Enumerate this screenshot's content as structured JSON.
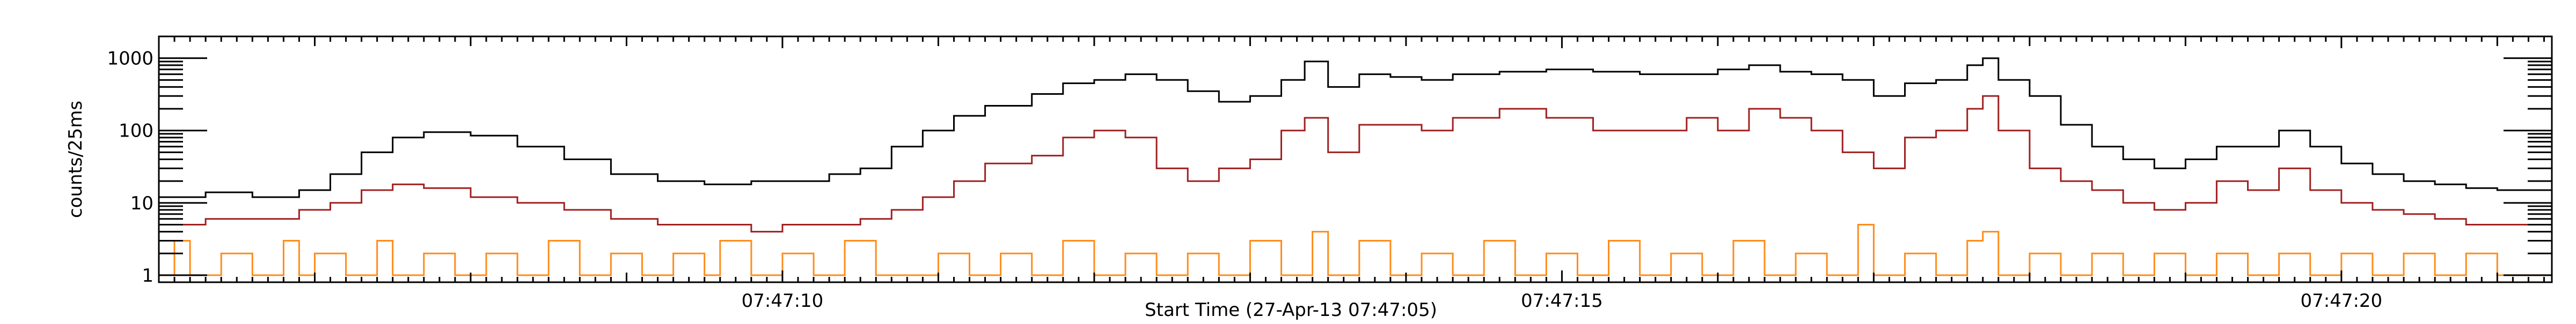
{
  "chart_data": {
    "type": "line",
    "title": "",
    "xlabel": "Start Time (27-Apr-13 07:47:05)",
    "ylabel": "counts/25ms",
    "y_scale": "log",
    "ylim": [
      0.8,
      2000
    ],
    "xlim": [
      1.0,
      16.35
    ],
    "x_unit": "seconds after 07:47:05",
    "x_ticks": [
      {
        "value": 5.0,
        "label": "07:47:10"
      },
      {
        "value": 10.0,
        "label": "07:47:15"
      },
      {
        "value": 15.0,
        "label": "07:47:20"
      }
    ],
    "y_ticks": [
      {
        "value": 1,
        "label": "1"
      },
      {
        "value": 10,
        "label": "10"
      },
      {
        "value": 100,
        "label": "100"
      },
      {
        "value": 1000,
        "label": "1000"
      }
    ],
    "grid": false,
    "legend": "none",
    "series": [
      {
        "color": "#000000",
        "style": "histogram-step",
        "points": [
          [
            1.0,
            12
          ],
          [
            1.3,
            14
          ],
          [
            1.6,
            12
          ],
          [
            1.9,
            15
          ],
          [
            2.1,
            25
          ],
          [
            2.3,
            50
          ],
          [
            2.5,
            80
          ],
          [
            2.7,
            95
          ],
          [
            3.0,
            85
          ],
          [
            3.3,
            60
          ],
          [
            3.6,
            40
          ],
          [
            3.9,
            25
          ],
          [
            4.2,
            20
          ],
          [
            4.5,
            18
          ],
          [
            4.8,
            20
          ],
          [
            5.0,
            20
          ],
          [
            5.3,
            25
          ],
          [
            5.5,
            30
          ],
          [
            5.7,
            60
          ],
          [
            5.9,
            100
          ],
          [
            6.1,
            160
          ],
          [
            6.3,
            220
          ],
          [
            6.6,
            320
          ],
          [
            6.8,
            450
          ],
          [
            7.0,
            500
          ],
          [
            7.2,
            600
          ],
          [
            7.4,
            500
          ],
          [
            7.6,
            350
          ],
          [
            7.8,
            250
          ],
          [
            8.0,
            300
          ],
          [
            8.2,
            500
          ],
          [
            8.35,
            900
          ],
          [
            8.5,
            400
          ],
          [
            8.7,
            600
          ],
          [
            8.9,
            550
          ],
          [
            9.1,
            500
          ],
          [
            9.3,
            600
          ],
          [
            9.6,
            650
          ],
          [
            9.9,
            700
          ],
          [
            10.2,
            650
          ],
          [
            10.5,
            600
          ],
          [
            10.8,
            600
          ],
          [
            11.0,
            700
          ],
          [
            11.2,
            800
          ],
          [
            11.4,
            650
          ],
          [
            11.6,
            600
          ],
          [
            11.8,
            500
          ],
          [
            12.0,
            300
          ],
          [
            12.2,
            450
          ],
          [
            12.4,
            500
          ],
          [
            12.6,
            800
          ],
          [
            12.7,
            1000
          ],
          [
            12.8,
            500
          ],
          [
            13.0,
            300
          ],
          [
            13.2,
            120
          ],
          [
            13.4,
            60
          ],
          [
            13.6,
            40
          ],
          [
            13.8,
            30
          ],
          [
            14.0,
            40
          ],
          [
            14.2,
            60
          ],
          [
            14.4,
            60
          ],
          [
            14.6,
            100
          ],
          [
            14.8,
            60
          ],
          [
            15.0,
            35
          ],
          [
            15.2,
            25
          ],
          [
            15.4,
            20
          ],
          [
            15.6,
            18
          ],
          [
            15.8,
            16
          ],
          [
            16.0,
            15
          ],
          [
            16.35,
            14
          ]
        ]
      },
      {
        "color": "#a02020",
        "style": "histogram-step",
        "points": [
          [
            1.0,
            5
          ],
          [
            1.3,
            6
          ],
          [
            1.6,
            6
          ],
          [
            1.9,
            8
          ],
          [
            2.1,
            10
          ],
          [
            2.3,
            15
          ],
          [
            2.5,
            18
          ],
          [
            2.7,
            16
          ],
          [
            3.0,
            12
          ],
          [
            3.3,
            10
          ],
          [
            3.6,
            8
          ],
          [
            3.9,
            6
          ],
          [
            4.2,
            5
          ],
          [
            4.5,
            5
          ],
          [
            4.8,
            4
          ],
          [
            5.0,
            5
          ],
          [
            5.3,
            5
          ],
          [
            5.5,
            6
          ],
          [
            5.7,
            8
          ],
          [
            5.9,
            12
          ],
          [
            6.1,
            20
          ],
          [
            6.3,
            35
          ],
          [
            6.6,
            45
          ],
          [
            6.8,
            80
          ],
          [
            7.0,
            100
          ],
          [
            7.2,
            80
          ],
          [
            7.4,
            30
          ],
          [
            7.6,
            20
          ],
          [
            7.8,
            30
          ],
          [
            8.0,
            40
          ],
          [
            8.2,
            100
          ],
          [
            8.35,
            150
          ],
          [
            8.5,
            50
          ],
          [
            8.7,
            120
          ],
          [
            8.9,
            120
          ],
          [
            9.1,
            100
          ],
          [
            9.3,
            150
          ],
          [
            9.6,
            200
          ],
          [
            9.9,
            150
          ],
          [
            10.2,
            100
          ],
          [
            10.5,
            100
          ],
          [
            10.8,
            150
          ],
          [
            11.0,
            100
          ],
          [
            11.2,
            200
          ],
          [
            11.4,
            150
          ],
          [
            11.6,
            100
          ],
          [
            11.8,
            50
          ],
          [
            12.0,
            30
          ],
          [
            12.2,
            80
          ],
          [
            12.4,
            100
          ],
          [
            12.6,
            200
          ],
          [
            12.7,
            300
          ],
          [
            12.8,
            100
          ],
          [
            13.0,
            30
          ],
          [
            13.2,
            20
          ],
          [
            13.4,
            15
          ],
          [
            13.6,
            10
          ],
          [
            13.8,
            8
          ],
          [
            14.0,
            10
          ],
          [
            14.2,
            20
          ],
          [
            14.4,
            15
          ],
          [
            14.6,
            30
          ],
          [
            14.8,
            15
          ],
          [
            15.0,
            10
          ],
          [
            15.2,
            8
          ],
          [
            15.4,
            7
          ],
          [
            15.6,
            6
          ],
          [
            15.8,
            5
          ],
          [
            16.0,
            5
          ],
          [
            16.35,
            5
          ]
        ]
      },
      {
        "color": "#ff8c1a",
        "style": "histogram-step",
        "points": [
          [
            1.0,
            1
          ],
          [
            1.1,
            3
          ],
          [
            1.2,
            1
          ],
          [
            1.4,
            2
          ],
          [
            1.6,
            1
          ],
          [
            1.8,
            3
          ],
          [
            1.9,
            1
          ],
          [
            2.0,
            2
          ],
          [
            2.2,
            1
          ],
          [
            2.4,
            3
          ],
          [
            2.5,
            1
          ],
          [
            2.7,
            2
          ],
          [
            2.9,
            1
          ],
          [
            3.1,
            2
          ],
          [
            3.3,
            1
          ],
          [
            3.5,
            3
          ],
          [
            3.7,
            1
          ],
          [
            3.9,
            2
          ],
          [
            4.1,
            1
          ],
          [
            4.3,
            2
          ],
          [
            4.5,
            1
          ],
          [
            4.6,
            3
          ],
          [
            4.8,
            1
          ],
          [
            5.0,
            2
          ],
          [
            5.2,
            1
          ],
          [
            5.4,
            3
          ],
          [
            5.6,
            1
          ],
          [
            5.8,
            1
          ],
          [
            6.0,
            2
          ],
          [
            6.2,
            1
          ],
          [
            6.4,
            2
          ],
          [
            6.6,
            1
          ],
          [
            6.8,
            3
          ],
          [
            7.0,
            1
          ],
          [
            7.2,
            2
          ],
          [
            7.4,
            1
          ],
          [
            7.6,
            2
          ],
          [
            7.8,
            1
          ],
          [
            8.0,
            3
          ],
          [
            8.2,
            1
          ],
          [
            8.4,
            4
          ],
          [
            8.5,
            1
          ],
          [
            8.7,
            3
          ],
          [
            8.9,
            1
          ],
          [
            9.1,
            2
          ],
          [
            9.3,
            1
          ],
          [
            9.5,
            3
          ],
          [
            9.7,
            1
          ],
          [
            9.9,
            2
          ],
          [
            10.1,
            1
          ],
          [
            10.3,
            3
          ],
          [
            10.5,
            1
          ],
          [
            10.7,
            2
          ],
          [
            10.9,
            1
          ],
          [
            11.1,
            3
          ],
          [
            11.3,
            1
          ],
          [
            11.5,
            2
          ],
          [
            11.7,
            1
          ],
          [
            11.9,
            5
          ],
          [
            12.0,
            1
          ],
          [
            12.2,
            2
          ],
          [
            12.4,
            1
          ],
          [
            12.6,
            3
          ],
          [
            12.7,
            4
          ],
          [
            12.8,
            1
          ],
          [
            13.0,
            2
          ],
          [
            13.2,
            1
          ],
          [
            13.4,
            2
          ],
          [
            13.6,
            1
          ],
          [
            13.8,
            2
          ],
          [
            14.0,
            1
          ],
          [
            14.2,
            2
          ],
          [
            14.4,
            1
          ],
          [
            14.6,
            2
          ],
          [
            14.8,
            1
          ],
          [
            15.0,
            2
          ],
          [
            15.2,
            1
          ],
          [
            15.4,
            2
          ],
          [
            15.6,
            1
          ],
          [
            15.8,
            2
          ],
          [
            16.0,
            1
          ],
          [
            16.35,
            1
          ]
        ]
      }
    ]
  }
}
